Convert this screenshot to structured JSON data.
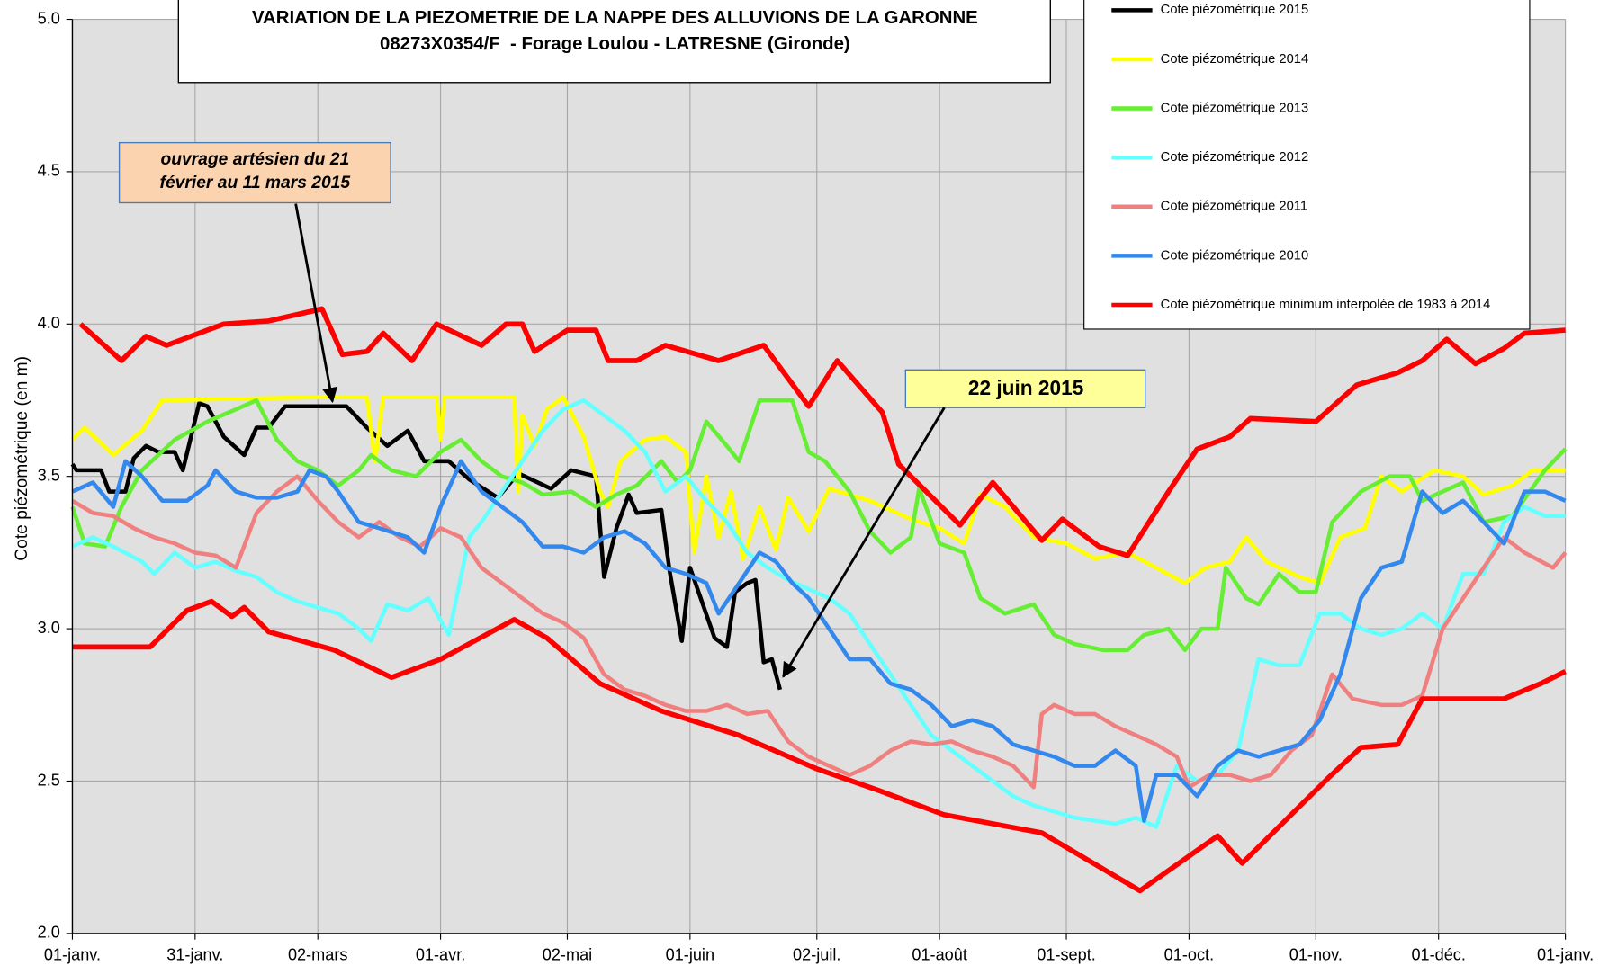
{
  "chart_data": {
    "type": "line",
    "title": [
      "VARIATION DE LA PIEZOMETRIE DE LA NAPPE DES ALLUVIONS DE LA GARONNE",
      "08273X0354/F  - Forage Loulou - LATRESNE (Gironde)"
    ],
    "y_label": "Cote piézométrique (en m)",
    "annotations": [
      {
        "text": [
          "ouvrage artésien du 21",
          "février au 11 mars 2015"
        ]
      },
      {
        "text": [
          "22 juin 2015"
        ]
      }
    ],
    "xlim": [
      0,
      365
    ],
    "xticks": [
      {
        "value": 0,
        "label": "01-janv."
      },
      {
        "value": 30,
        "label": "31-janv."
      },
      {
        "value": 60,
        "label": "02-mars"
      },
      {
        "value": 90,
        "label": "01-avr."
      },
      {
        "value": 121,
        "label": "02-mai"
      },
      {
        "value": 151,
        "label": "01-juin"
      },
      {
        "value": 182,
        "label": "02-juil."
      },
      {
        "value": 212,
        "label": "01-août"
      },
      {
        "value": 243,
        "label": "01-sept."
      },
      {
        "value": 273,
        "label": "01-oct."
      },
      {
        "value": 304,
        "label": "01-nov."
      },
      {
        "value": 334,
        "label": "01-déc."
      },
      {
        "value": 365,
        "label": "01-janv."
      }
    ],
    "ylim": [
      2.0,
      5.0
    ],
    "yticks": [
      {
        "value": 2.0,
        "label": "2.0"
      },
      2.5,
      {
        "value": 3.0,
        "label": "3.0"
      },
      3.5,
      {
        "value": 4.0,
        "label": "4.0"
      },
      4.5,
      {
        "value": 5.0,
        "label": "5.0"
      }
    ],
    "grid": true,
    "legend": "top-right",
    "series": [
      {
        "name": "Cote piézométrique 2015",
        "color": "#000000",
        "x": [
          0,
          1,
          7,
          9,
          13,
          15,
          18,
          21,
          25,
          27,
          31,
          33,
          37,
          42,
          45,
          48,
          52,
          67,
          72,
          77,
          82,
          86,
          92,
          97,
          104,
          109,
          117,
          122,
          128,
          130,
          133,
          136,
          138,
          144,
          146,
          149,
          151,
          157,
          160,
          162,
          165,
          167,
          169,
          171,
          173
        ],
        "values": [
          3.54,
          3.52,
          3.52,
          3.45,
          3.45,
          3.56,
          3.6,
          3.58,
          3.58,
          3.52,
          3.74,
          3.73,
          3.63,
          3.57,
          3.66,
          3.66,
          3.73,
          3.73,
          3.66,
          3.6,
          3.65,
          3.55,
          3.55,
          3.49,
          3.43,
          3.51,
          3.46,
          3.52,
          3.5,
          3.17,
          3.33,
          3.44,
          3.38,
          3.39,
          3.19,
          2.96,
          3.2,
          2.97,
          2.94,
          3.12,
          3.15,
          3.16,
          2.89,
          2.9,
          2.8
        ]
      },
      {
        "name": "Cote piézométrique 2014",
        "color": "#ffff00",
        "x": [
          0,
          3,
          10,
          17,
          22,
          60,
          72,
          74,
          76,
          89,
          90,
          91,
          108,
          109,
          110,
          113,
          116,
          120,
          125,
          129,
          131,
          134,
          140,
          145,
          150,
          152,
          155,
          158,
          161,
          164,
          168,
          172,
          175,
          180,
          185,
          195,
          205,
          212,
          218,
          222,
          228,
          235,
          243,
          250,
          258,
          265,
          272,
          277,
          283,
          287,
          292,
          300,
          305,
          310,
          316,
          320,
          325,
          333,
          340,
          345,
          352,
          357,
          365
        ],
        "values": [
          3.62,
          3.66,
          3.57,
          3.65,
          3.75,
          3.76,
          3.76,
          3.55,
          3.76,
          3.76,
          3.62,
          3.76,
          3.76,
          3.45,
          3.7,
          3.6,
          3.72,
          3.76,
          3.63,
          3.45,
          3.4,
          3.55,
          3.62,
          3.63,
          3.58,
          3.25,
          3.5,
          3.3,
          3.45,
          3.23,
          3.4,
          3.26,
          3.43,
          3.32,
          3.46,
          3.42,
          3.36,
          3.33,
          3.28,
          3.44,
          3.4,
          3.3,
          3.28,
          3.23,
          3.25,
          3.2,
          3.15,
          3.2,
          3.22,
          3.3,
          3.22,
          3.17,
          3.15,
          3.3,
          3.33,
          3.5,
          3.45,
          3.52,
          3.5,
          3.44,
          3.47,
          3.52,
          3.52
        ]
      },
      {
        "name": "Cote piézométrique 2013",
        "color": "#66ee33",
        "x": [
          0,
          3,
          8,
          12,
          17,
          25,
          33,
          40,
          45,
          50,
          55,
          60,
          65,
          70,
          73,
          78,
          84,
          90,
          95,
          100,
          105,
          110,
          115,
          122,
          128,
          133,
          138,
          144,
          148,
          151,
          155,
          160,
          163,
          168,
          176,
          180,
          184,
          190,
          195,
          200,
          205,
          207,
          212,
          218,
          222,
          228,
          235,
          240,
          245,
          252,
          258,
          262,
          268,
          272,
          276,
          280,
          282,
          287,
          290,
          295,
          300,
          304,
          308,
          315,
          322,
          327,
          330,
          335,
          340,
          345,
          352,
          360,
          365
        ],
        "values": [
          3.4,
          3.28,
          3.27,
          3.4,
          3.52,
          3.62,
          3.68,
          3.72,
          3.75,
          3.62,
          3.55,
          3.52,
          3.47,
          3.52,
          3.57,
          3.52,
          3.5,
          3.58,
          3.62,
          3.55,
          3.5,
          3.48,
          3.44,
          3.45,
          3.4,
          3.44,
          3.47,
          3.55,
          3.48,
          3.52,
          3.68,
          3.6,
          3.55,
          3.75,
          3.75,
          3.58,
          3.55,
          3.45,
          3.32,
          3.25,
          3.3,
          3.46,
          3.28,
          3.25,
          3.1,
          3.05,
          3.08,
          2.98,
          2.95,
          2.93,
          2.93,
          2.98,
          3.0,
          2.93,
          3.0,
          3.0,
          3.2,
          3.1,
          3.08,
          3.18,
          3.12,
          3.12,
          3.35,
          3.45,
          3.5,
          3.5,
          3.42,
          3.45,
          3.48,
          3.35,
          3.37,
          3.52,
          3.59
        ]
      },
      {
        "name": "Cote piézométrique 2012",
        "color": "#66ffff",
        "x": [
          0,
          5,
          10,
          17,
          20,
          25,
          30,
          35,
          40,
          45,
          50,
          55,
          60,
          65,
          70,
          73,
          77,
          82,
          87,
          92,
          97,
          100,
          105,
          110,
          115,
          120,
          125,
          130,
          135,
          140,
          145,
          150,
          155,
          160,
          165,
          170,
          175,
          180,
          185,
          190,
          195,
          200,
          205,
          210,
          215,
          220,
          225,
          230,
          235,
          240,
          245,
          250,
          255,
          260,
          265,
          270,
          275,
          280,
          285,
          290,
          295,
          300,
          305,
          310,
          315,
          320,
          325,
          330,
          335,
          340,
          345,
          350,
          355,
          360,
          365
        ],
        "values": [
          3.27,
          3.3,
          3.27,
          3.22,
          3.18,
          3.25,
          3.2,
          3.22,
          3.19,
          3.17,
          3.12,
          3.09,
          3.07,
          3.05,
          3.0,
          2.96,
          3.08,
          3.06,
          3.1,
          2.98,
          3.3,
          3.35,
          3.45,
          3.55,
          3.65,
          3.72,
          3.75,
          3.7,
          3.65,
          3.58,
          3.45,
          3.5,
          3.42,
          3.35,
          3.25,
          3.2,
          3.16,
          3.13,
          3.1,
          3.05,
          2.95,
          2.85,
          2.75,
          2.65,
          2.6,
          2.55,
          2.5,
          2.45,
          2.42,
          2.4,
          2.38,
          2.37,
          2.36,
          2.38,
          2.35,
          2.55,
          2.5,
          2.52,
          2.6,
          2.9,
          2.88,
          2.88,
          3.05,
          3.05,
          3.0,
          2.98,
          3.0,
          3.05,
          3.0,
          3.18,
          3.18,
          3.35,
          3.4,
          3.37,
          3.37
        ]
      },
      {
        "name": "Cote piézométrique 2011",
        "color": "#f08080",
        "x": [
          0,
          5,
          10,
          15,
          20,
          25,
          30,
          35,
          40,
          45,
          50,
          55,
          60,
          65,
          70,
          75,
          80,
          85,
          90,
          95,
          100,
          105,
          110,
          115,
          120,
          125,
          130,
          135,
          140,
          145,
          150,
          155,
          160,
          165,
          170,
          175,
          180,
          185,
          190,
          195,
          200,
          205,
          210,
          215,
          220,
          225,
          230,
          235,
          237,
          240,
          245,
          250,
          255,
          260,
          265,
          270,
          273,
          278,
          283,
          288,
          293,
          298,
          303,
          308,
          313,
          320,
          325,
          330,
          335,
          340,
          345,
          350,
          355,
          362,
          365
        ],
        "values": [
          3.42,
          3.38,
          3.37,
          3.33,
          3.3,
          3.28,
          3.25,
          3.24,
          3.2,
          3.38,
          3.45,
          3.5,
          3.42,
          3.35,
          3.3,
          3.35,
          3.3,
          3.27,
          3.33,
          3.3,
          3.2,
          3.15,
          3.1,
          3.05,
          3.02,
          2.97,
          2.85,
          2.8,
          2.78,
          2.75,
          2.73,
          2.73,
          2.75,
          2.72,
          2.73,
          2.63,
          2.58,
          2.55,
          2.52,
          2.55,
          2.6,
          2.63,
          2.62,
          2.63,
          2.6,
          2.58,
          2.55,
          2.48,
          2.72,
          2.75,
          2.72,
          2.72,
          2.68,
          2.65,
          2.62,
          2.58,
          2.48,
          2.52,
          2.52,
          2.5,
          2.52,
          2.6,
          2.65,
          2.85,
          2.77,
          2.75,
          2.75,
          2.78,
          3.0,
          3.1,
          3.2,
          3.3,
          3.25,
          3.2,
          3.25
        ]
      },
      {
        "name": "Cote piézométrique 2010",
        "color": "#3388ee",
        "x": [
          0,
          5,
          10,
          13,
          17,
          22,
          28,
          33,
          35,
          40,
          45,
          50,
          55,
          58,
          62,
          65,
          70,
          75,
          82,
          86,
          90,
          95,
          100,
          105,
          110,
          115,
          120,
          125,
          130,
          135,
          140,
          145,
          150,
          155,
          158,
          163,
          168,
          172,
          176,
          180,
          185,
          190,
          195,
          200,
          205,
          210,
          215,
          220,
          225,
          230,
          235,
          240,
          245,
          250,
          255,
          260,
          262,
          265,
          270,
          275,
          280,
          285,
          290,
          295,
          300,
          305,
          310,
          315,
          320,
          325,
          330,
          335,
          340,
          345,
          350,
          355,
          360,
          365
        ],
        "values": [
          3.45,
          3.48,
          3.4,
          3.55,
          3.5,
          3.42,
          3.42,
          3.47,
          3.52,
          3.45,
          3.43,
          3.43,
          3.45,
          3.52,
          3.5,
          3.45,
          3.35,
          3.33,
          3.3,
          3.25,
          3.4,
          3.55,
          3.45,
          3.4,
          3.35,
          3.27,
          3.27,
          3.25,
          3.3,
          3.32,
          3.28,
          3.2,
          3.18,
          3.15,
          3.05,
          3.15,
          3.25,
          3.22,
          3.15,
          3.1,
          3.0,
          2.9,
          2.9,
          2.82,
          2.8,
          2.75,
          2.68,
          2.7,
          2.68,
          2.62,
          2.6,
          2.58,
          2.55,
          2.55,
          2.6,
          2.55,
          2.37,
          2.52,
          2.52,
          2.45,
          2.55,
          2.6,
          2.58,
          2.6,
          2.62,
          2.7,
          2.85,
          3.1,
          3.2,
          3.22,
          3.45,
          3.38,
          3.42,
          3.35,
          3.28,
          3.45,
          3.45,
          3.42
        ]
      },
      {
        "name": "Cote piézométrique minimum interpolée de 1983 à 2014",
        "color": "#ff0000",
        "x": [
          0,
          19,
          28,
          34,
          39,
          42,
          48,
          64,
          78,
          90,
          108,
          116,
          129,
          144,
          163,
          182,
          197,
          213,
          237,
          261,
          280,
          286,
          307,
          315,
          324,
          330,
          350,
          359,
          365
        ],
        "values": [
          2.94,
          2.94,
          3.06,
          3.09,
          3.04,
          3.07,
          2.99,
          2.93,
          2.84,
          2.9,
          3.03,
          2.97,
          2.82,
          2.73,
          2.65,
          2.54,
          2.47,
          2.39,
          2.33,
          2.14,
          2.32,
          2.23,
          2.51,
          2.61,
          2.62,
          2.77,
          2.77,
          2.82,
          2.86
        ]
      },
      {
        "color": "#ff0000",
        "x": [
          2,
          12,
          18,
          23,
          37,
          48,
          61,
          66,
          72,
          76,
          83,
          89,
          100,
          106,
          110,
          113,
          121,
          128,
          131,
          138,
          145,
          158,
          169,
          180,
          187,
          198,
          202,
          217,
          225,
          237,
          242,
          251,
          258,
          268,
          275,
          283,
          288,
          304,
          314,
          324,
          330,
          336,
          343,
          350,
          355,
          365
        ],
        "values": [
          4.0,
          3.88,
          3.96,
          3.93,
          4.0,
          4.01,
          4.05,
          3.9,
          3.91,
          3.97,
          3.88,
          4.0,
          3.93,
          4.0,
          4.0,
          3.91,
          3.98,
          3.98,
          3.88,
          3.88,
          3.93,
          3.88,
          3.93,
          3.73,
          3.88,
          3.71,
          3.54,
          3.34,
          3.48,
          3.29,
          3.36,
          3.27,
          3.24,
          3.45,
          3.59,
          3.63,
          3.69,
          3.68,
          3.8,
          3.84,
          3.88,
          3.95,
          3.87,
          3.92,
          3.97,
          3.98
        ]
      }
    ]
  }
}
